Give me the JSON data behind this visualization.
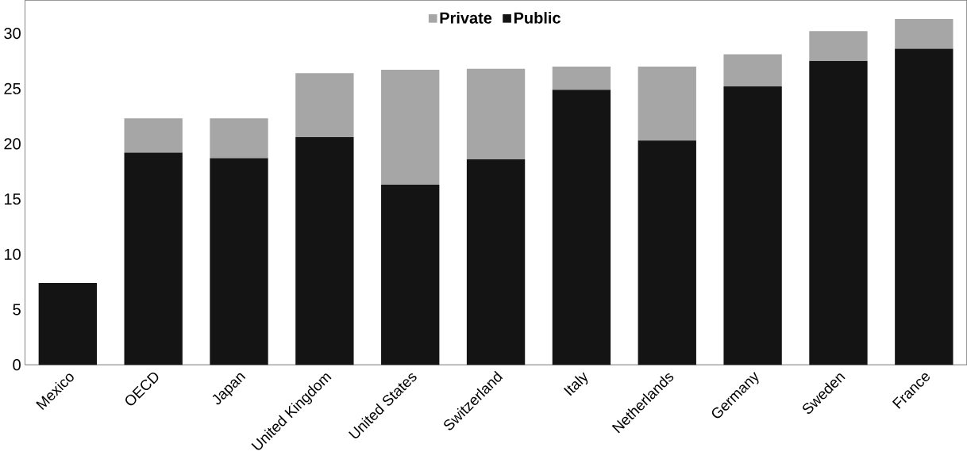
{
  "chart_data": {
    "type": "bar",
    "stacked": true,
    "categories": [
      "Mexico",
      "OECD",
      "Japan",
      "United Kingdom",
      "United States",
      "Switzerland",
      "Italy",
      "Netherlands",
      "Germany",
      "Sweden",
      "France"
    ],
    "series": [
      {
        "name": "Public",
        "color": "#141414",
        "values": [
          7.4,
          19.2,
          18.7,
          20.6,
          16.3,
          18.6,
          24.9,
          20.3,
          25.2,
          27.5,
          28.6
        ]
      },
      {
        "name": "Private",
        "color": "#a6a6a6",
        "values": [
          0,
          3.1,
          3.6,
          5.8,
          10.4,
          8.2,
          2.1,
          6.7,
          2.9,
          2.7,
          2.7
        ]
      }
    ],
    "ylim": [
      0,
      33
    ],
    "yticks": [
      0,
      5,
      10,
      15,
      20,
      25,
      30
    ],
    "grid": false,
    "legend": "top"
  }
}
